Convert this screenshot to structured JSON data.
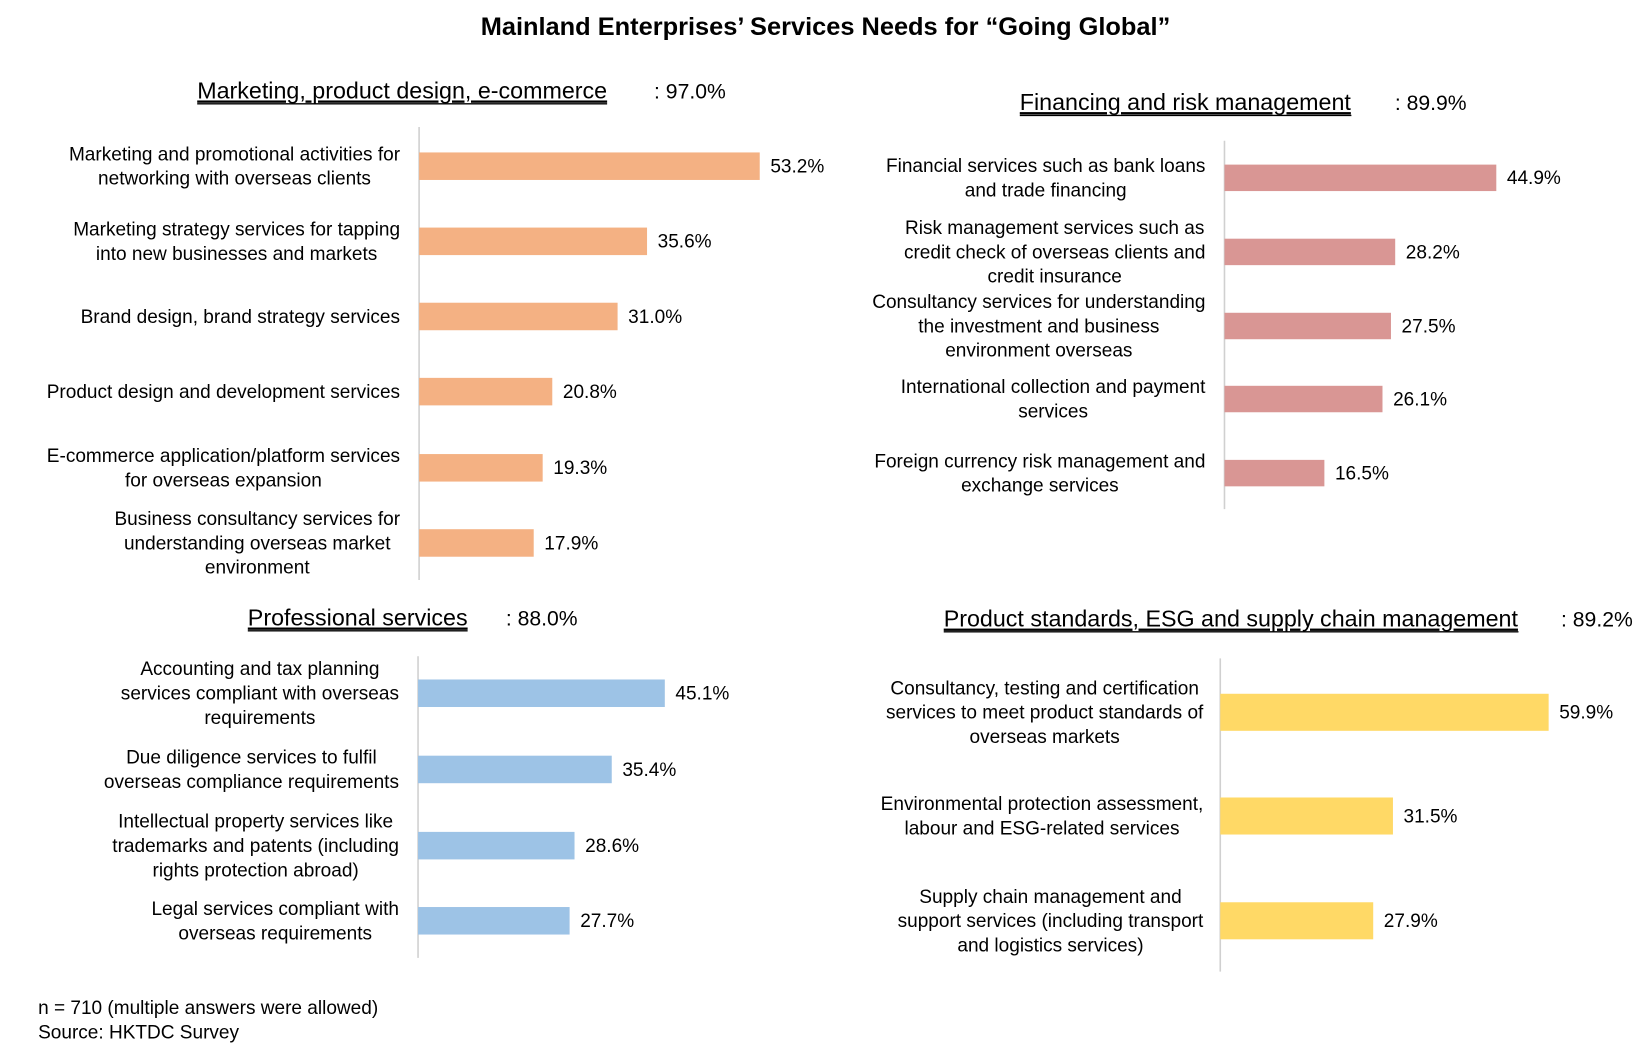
{
  "title": "Mainland Enterprises’ Services Needs for “Going Global”",
  "footnote": [
    "n = 710 (multiple answers were allowed)",
    "Source: HKTDC Survey"
  ],
  "chart_data": [
    {
      "type": "bar",
      "orientation": "horizontal",
      "title": "Marketing, product design, e-commerce",
      "total": ": 97.0%",
      "color": "#F4B183",
      "categories": [
        [
          "Marketing and promotional activities for",
          "networking with overseas clients"
        ],
        [
          "Marketing strategy services for tapping",
          "into new businesses and markets"
        ],
        [
          "Brand design, brand strategy services"
        ],
        [
          "Product design and development services"
        ],
        [
          "E-commerce application/platform services",
          "for overseas expansion"
        ],
        [
          "Business consultancy services for",
          "understanding overseas market",
          "environment"
        ]
      ],
      "values": [
        53.2,
        35.6,
        31.0,
        20.8,
        19.3,
        17.9
      ],
      "labels": [
        "53.2%",
        "35.6%",
        "31.0%",
        "20.8%",
        "19.3%",
        "17.9%"
      ]
    },
    {
      "type": "bar",
      "orientation": "horizontal",
      "title": "Financing and risk management",
      "total": ": 89.9%",
      "color": "#D99694",
      "categories": [
        [
          "Financial services such as bank loans",
          "and trade financing"
        ],
        [
          "Risk management services such as",
          "credit check of overseas clients and",
          "credit insurance"
        ],
        [
          "Consultancy services for understanding",
          "the investment and business",
          "environment overseas"
        ],
        [
          "International collection and payment",
          "services"
        ],
        [
          "Foreign currency risk management and",
          "exchange services"
        ]
      ],
      "values": [
        44.9,
        28.2,
        27.5,
        26.1,
        16.5
      ],
      "labels": [
        "44.9%",
        "28.2%",
        "27.5%",
        "26.1%",
        "16.5%"
      ]
    },
    {
      "type": "bar",
      "orientation": "horizontal",
      "title": "Professional services",
      "total": ": 88.0%",
      "color": "#9DC3E6",
      "categories": [
        [
          "Accounting and tax planning",
          "services compliant with overseas",
          "requirements"
        ],
        [
          "Due diligence services to fulfil",
          "overseas compliance requirements"
        ],
        [
          "Intellectual property services like",
          "trademarks and patents (including",
          "rights protection abroad)"
        ],
        [
          "Legal services compliant with",
          "overseas requirements"
        ]
      ],
      "values": [
        45.1,
        35.4,
        28.6,
        27.7
      ],
      "labels": [
        "45.1%",
        "35.4%",
        "28.6%",
        "27.7%"
      ]
    },
    {
      "type": "bar",
      "orientation": "horizontal",
      "title": "Product standards, ESG and supply chain management",
      "total": ": 89.2%",
      "color": "#FFD966",
      "categories": [
        [
          "Consultancy, testing and certification",
          "services to meet product standards of",
          "overseas markets"
        ],
        [
          "Environmental protection assessment,",
          "labour and ESG-related services"
        ],
        [
          "Supply chain management and",
          "support services (including transport",
          "and logistics services)"
        ]
      ],
      "values": [
        59.9,
        31.5,
        27.9
      ],
      "labels": [
        "59.9%",
        "31.5%",
        "27.9%"
      ]
    }
  ]
}
